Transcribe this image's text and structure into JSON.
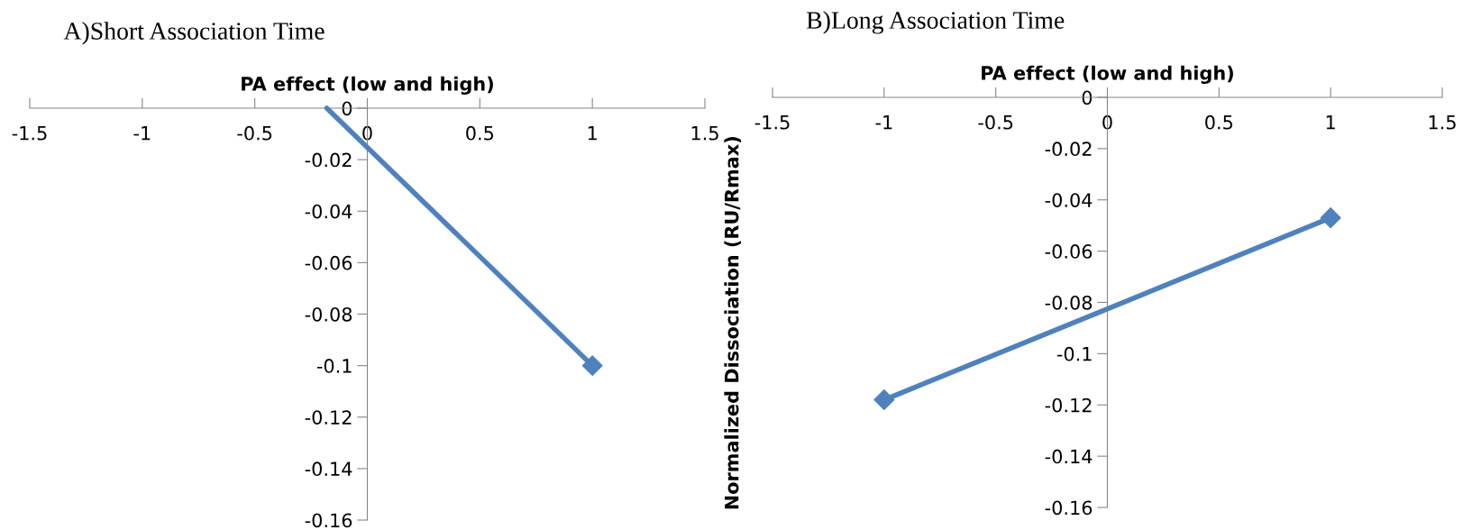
{
  "chart_data": [
    {
      "type": "line",
      "title": "A)Short Association Time",
      "xlabel": "PA effect (low and high)",
      "xlim": [
        -1.5,
        1.5
      ],
      "xticks": [
        -1.5,
        -1,
        -0.5,
        0,
        0.5,
        1,
        1.5
      ],
      "ylim": [
        -0.16,
        0
      ],
      "yticks": [
        -0.16,
        -0.14,
        -0.12,
        -0.1,
        -0.08,
        -0.06,
        -0.04,
        -0.02,
        0
      ],
      "grid": false,
      "legend": false,
      "series": [
        {
          "color": "#4f81bd",
          "x": [
            -0.18,
            1
          ],
          "values": [
            0,
            -0.1
          ],
          "marker": "none"
        },
        {
          "type": "scatter",
          "color": "#4f81bd",
          "x": [
            1
          ],
          "values": [
            -0.1
          ],
          "marker": "diamond"
        }
      ]
    },
    {
      "type": "line",
      "title": "B)Long Association Time",
      "xlabel": "PA effect (low and high)",
      "ylabel": "Normalized Dissociation (RU/Rmax)",
      "xlim": [
        -1.5,
        1.5
      ],
      "xticks": [
        -1.5,
        -1,
        -0.5,
        0,
        0.5,
        1,
        1.5
      ],
      "ylim": [
        -0.16,
        0
      ],
      "yticks": [
        -0.16,
        -0.14,
        -0.12,
        -0.1,
        -0.08,
        -0.06,
        -0.04,
        -0.02,
        0
      ],
      "grid": false,
      "legend": false,
      "series": [
        {
          "color": "#4f81bd",
          "x": [
            -1,
            1
          ],
          "values": [
            -0.118,
            -0.047
          ],
          "marker": "diamond"
        }
      ]
    }
  ]
}
